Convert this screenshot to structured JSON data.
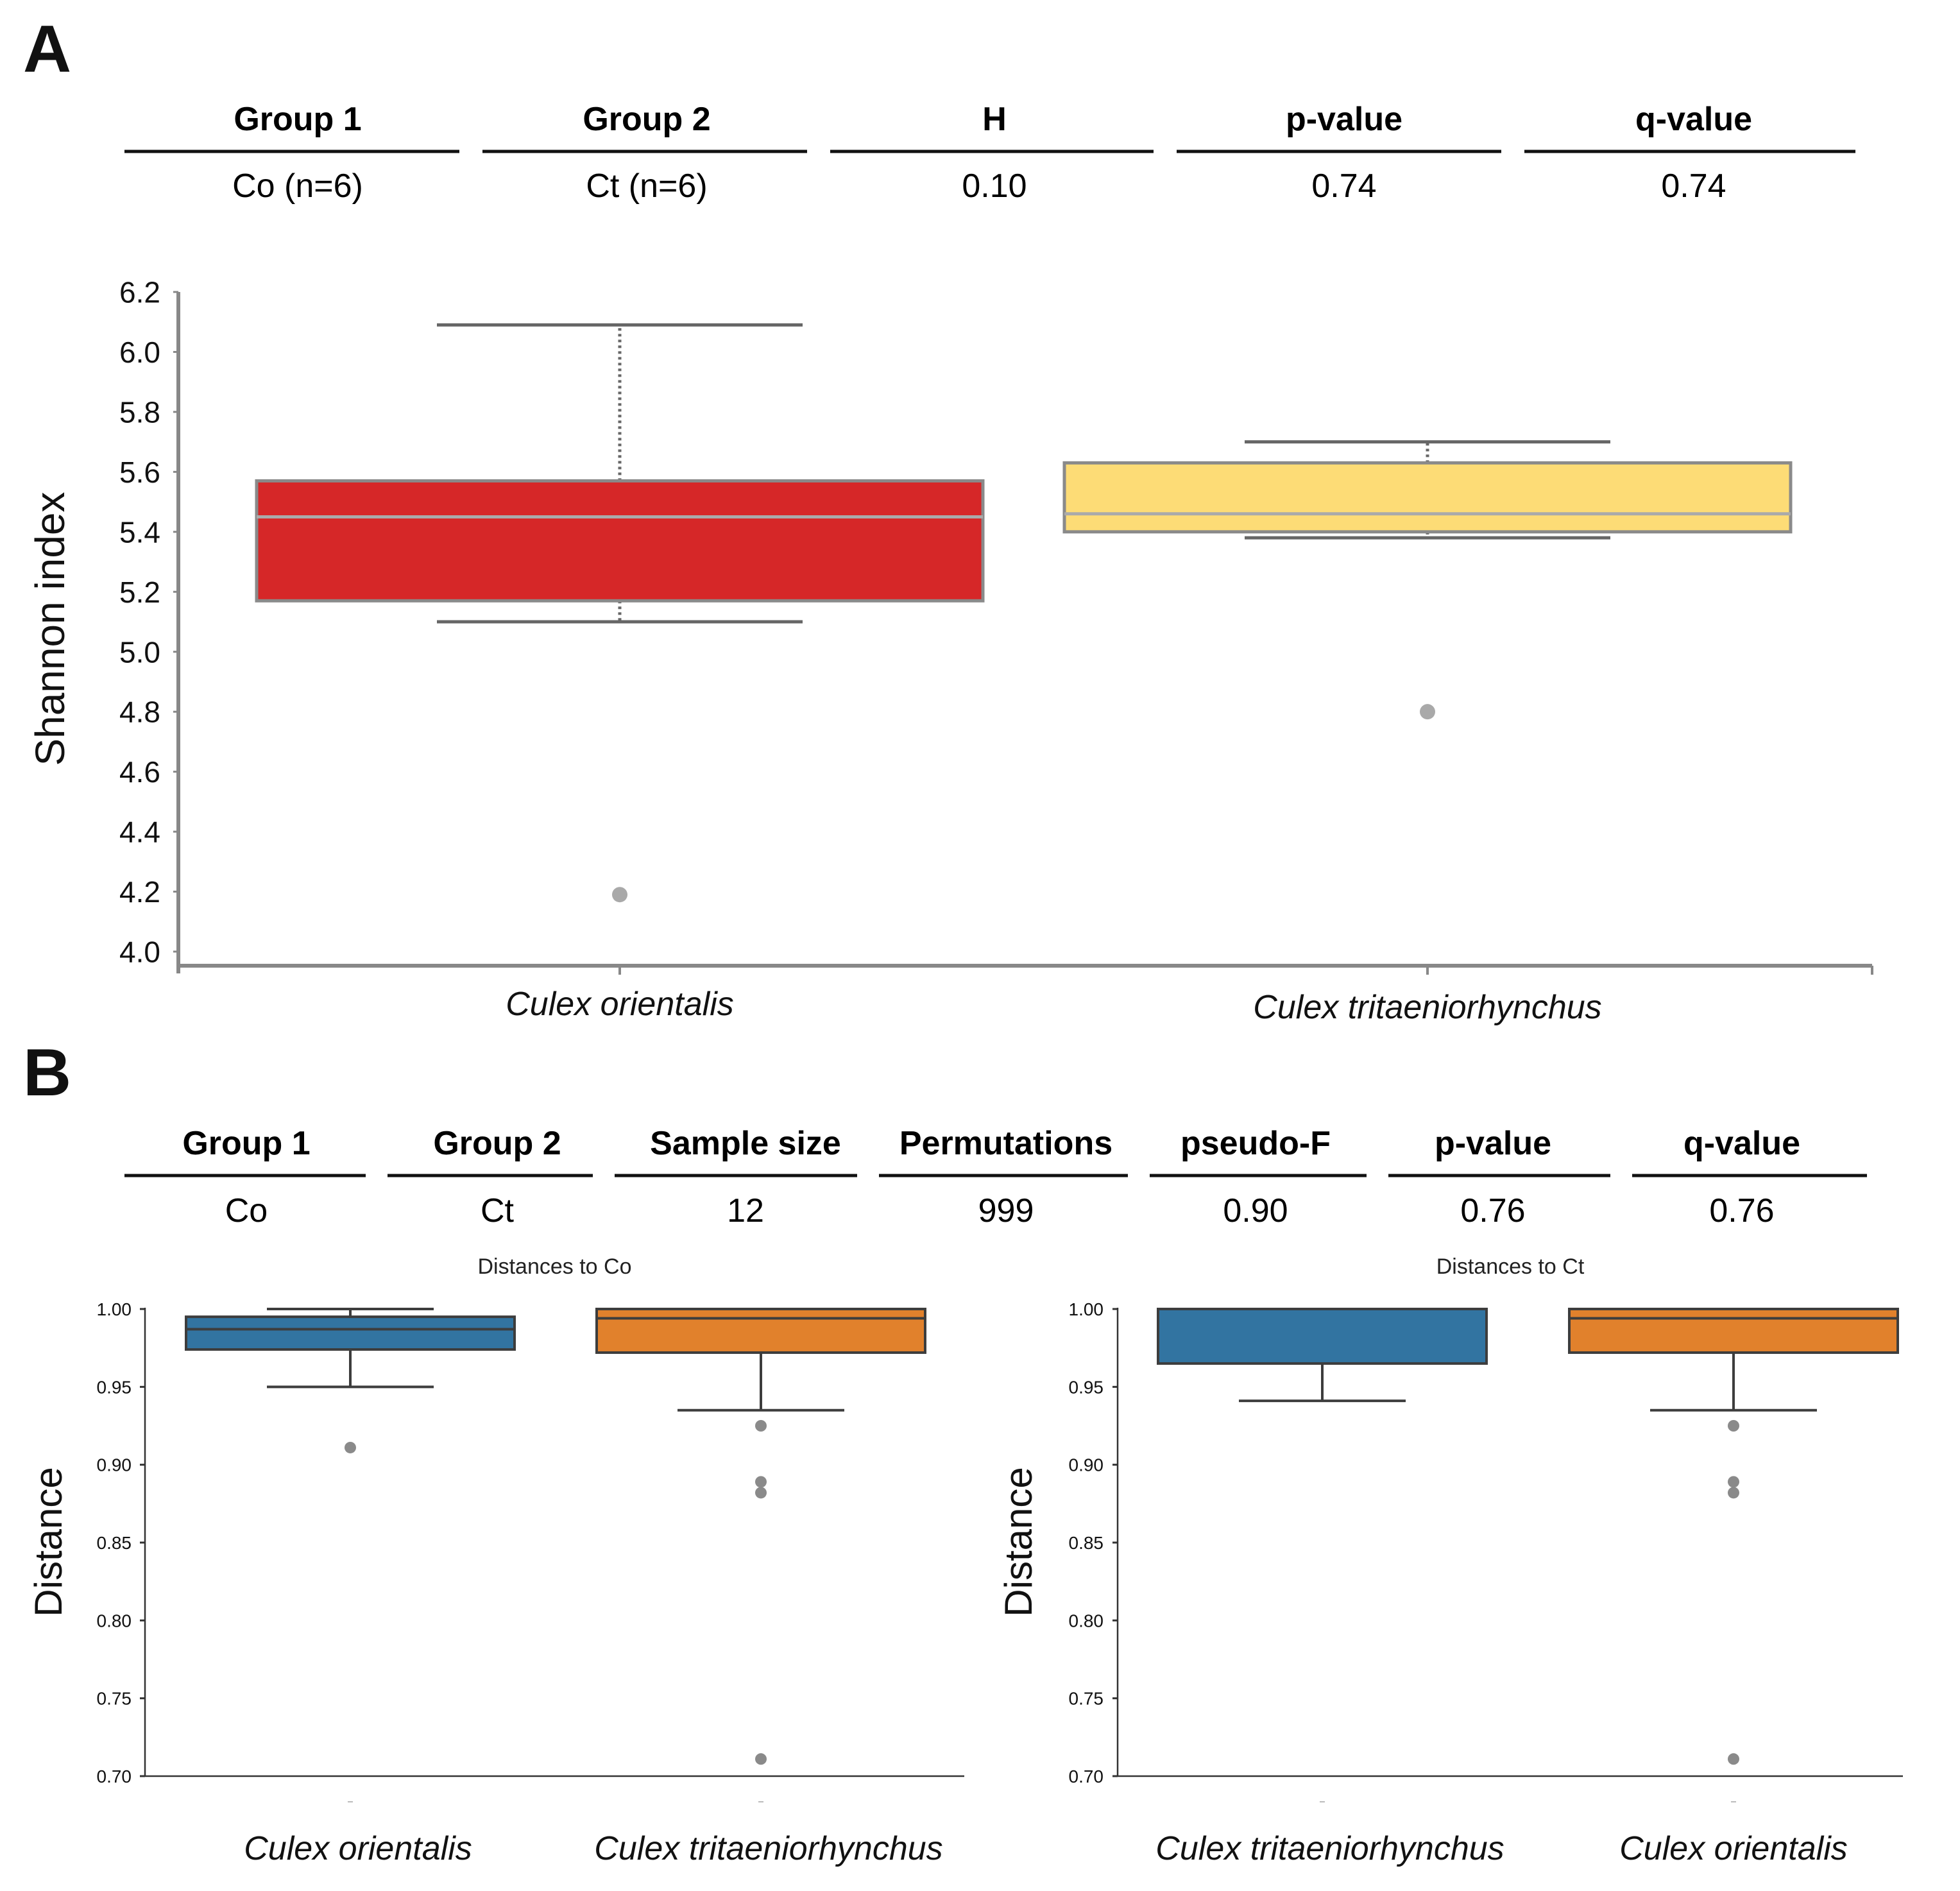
{
  "panel_a": {
    "label": "A",
    "table": {
      "headers": [
        "Group 1",
        "Group 2",
        "H",
        "p-value",
        "q-value"
      ],
      "row": [
        "Co (n=6)",
        "Ct (n=6)",
        "0.10",
        "0.74",
        "0.74"
      ]
    }
  },
  "panel_b": {
    "label": "B",
    "table": {
      "headers": [
        "Group 1",
        "Group 2",
        "Sample size",
        "Permutations",
        "pseudo-F",
        "p-value",
        "q-value"
      ],
      "row": [
        "Co",
        "Ct",
        "12",
        "999",
        "0.90",
        "0.76",
        "0.76"
      ]
    }
  },
  "chart_data": [
    {
      "type": "box",
      "ylabel": "Shannon index",
      "ylim": [
        4.0,
        6.2
      ],
      "yticks": [
        "4.0",
        "4.2",
        "4.4",
        "4.6",
        "4.8",
        "5.0",
        "5.2",
        "5.4",
        "5.6",
        "5.8",
        "6.0",
        "6.2"
      ],
      "grid": false,
      "groups": [
        {
          "name": "Culex orientalis",
          "whisker_low": 5.1,
          "q1": 5.17,
          "median": 5.45,
          "q3": 5.57,
          "whisker_high": 6.09,
          "outliers": [
            4.19
          ],
          "color": "#d62728"
        },
        {
          "name": "Culex tritaeniorhynchus",
          "whisker_low": 5.38,
          "q1": 5.4,
          "median": 5.46,
          "q3": 5.63,
          "whisker_high": 5.7,
          "outliers": [
            4.8
          ],
          "color": "#fddc76"
        }
      ]
    },
    {
      "type": "box",
      "title": "Distances to Co",
      "ylabel": "Distance",
      "ylim": [
        0.7,
        1.0
      ],
      "yticks": [
        "0.70",
        "0.75",
        "0.80",
        "0.85",
        "0.90",
        "0.95",
        "1.00"
      ],
      "grid": false,
      "groups": [
        {
          "name": "Culex orientalis",
          "whisker_low": 0.95,
          "q1": 0.974,
          "median": 0.987,
          "q3": 0.995,
          "whisker_high": 1.0,
          "outliers": [
            0.911
          ],
          "color": "#3274a1"
        },
        {
          "name": "Culex tritaeniorhynchus",
          "whisker_low": 0.935,
          "q1": 0.972,
          "median": 0.994,
          "q3": 1.0,
          "whisker_high": 1.0,
          "outliers": [
            0.925,
            0.889,
            0.882,
            0.711
          ],
          "color": "#e1812c"
        }
      ]
    },
    {
      "type": "box",
      "title": "Distances to Ct",
      "ylabel": "Distance",
      "ylim": [
        0.7,
        1.0
      ],
      "yticks": [
        "0.70",
        "0.75",
        "0.80",
        "0.85",
        "0.90",
        "0.95",
        "1.00"
      ],
      "grid": false,
      "groups": [
        {
          "name": "Culex tritaeniorhynchus",
          "whisker_low": 0.941,
          "q1": 0.965,
          "median": 1.0,
          "q3": 1.0,
          "whisker_high": 1.0,
          "outliers": [],
          "color": "#3274a1"
        },
        {
          "name": "Culex orientalis",
          "whisker_low": 0.935,
          "q1": 0.972,
          "median": 0.994,
          "q3": 1.0,
          "whisker_high": 1.0,
          "outliers": [
            0.925,
            0.889,
            0.882,
            0.711
          ],
          "color": "#e1812c"
        }
      ]
    }
  ]
}
